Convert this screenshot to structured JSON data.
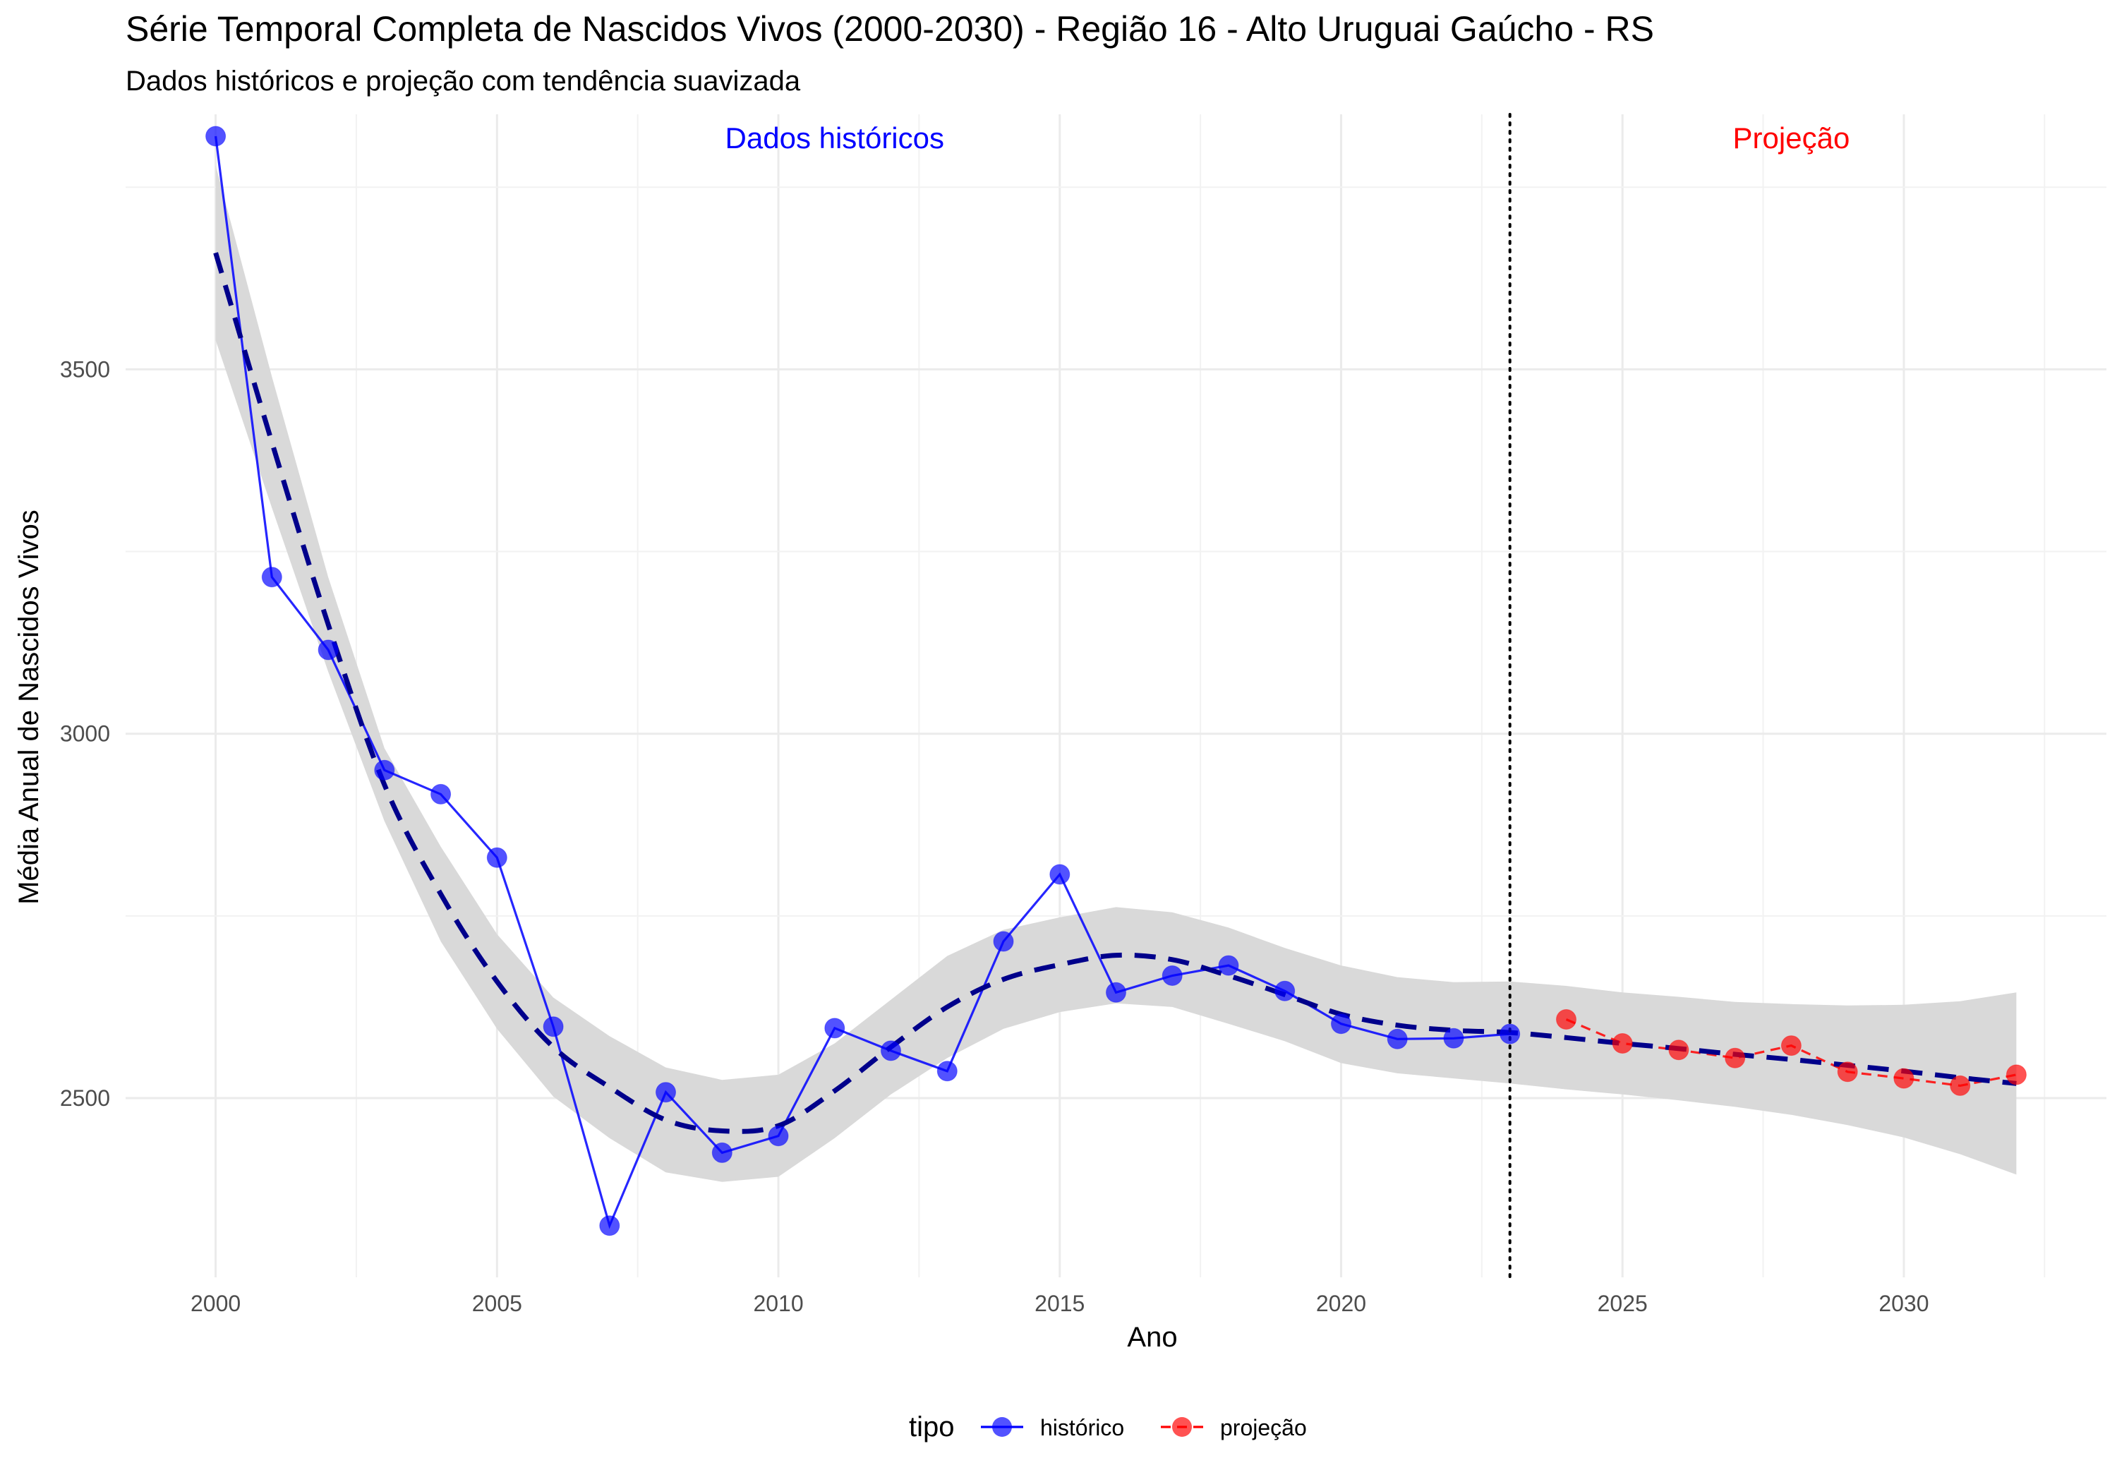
{
  "chart_data": {
    "type": "line",
    "title": "Série Temporal Completa de Nascidos Vivos (2000-2030) -  Região 16 - Alto Uruguai Gaúcho - RS",
    "subtitle": "Dados históricos e projeção com tendência suavizada",
    "xlabel": "Ano",
    "ylabel": "Média Anual de Nascidos Vivos",
    "xlim": [
      1998.4,
      2033.6
    ],
    "ylim": [
      2254,
      3850
    ],
    "x_ticks": [
      2000,
      2005,
      2010,
      2015,
      2020,
      2025,
      2030
    ],
    "y_ticks": [
      2500,
      3000,
      3500
    ],
    "grid": true,
    "legend": {
      "title": "tipo",
      "position": "bottom",
      "entries": [
        "histórico",
        "projeção"
      ]
    },
    "series": [
      {
        "name": "histórico",
        "color": "#0000ff",
        "line_style": "solid",
        "x": [
          2000,
          2001,
          2002,
          2003,
          2004,
          2005,
          2006,
          2007,
          2008,
          2009,
          2010,
          2011,
          2012,
          2013,
          2014,
          2015,
          2016,
          2017,
          2018,
          2019,
          2020,
          2021,
          2022,
          2023
        ],
        "y": [
          3820,
          3215,
          3115,
          2950,
          2917,
          2830,
          2598,
          2325,
          2508,
          2425,
          2448,
          2596,
          2565,
          2537,
          2715,
          2807,
          2645,
          2668,
          2682,
          2647,
          2602,
          2581,
          2582,
          2588
        ]
      },
      {
        "name": "projeção",
        "color": "#ff0000",
        "line_style": "dashed",
        "x": [
          2024,
          2025,
          2026,
          2027,
          2028,
          2029,
          2030,
          2031,
          2032
        ],
        "y": [
          2608,
          2575,
          2566,
          2555,
          2572,
          2536,
          2527,
          2517,
          2532
        ]
      }
    ],
    "trend": {
      "color": "#00008b",
      "line_style": "dashed",
      "band_color": "#d9d9d9",
      "x": [
        2000,
        2001,
        2002,
        2003,
        2004,
        2005,
        2006,
        2007,
        2008,
        2009,
        2010,
        2011,
        2012,
        2013,
        2014,
        2015,
        2016,
        2017,
        2018,
        2019,
        2020,
        2021,
        2022,
        2023,
        2024,
        2025,
        2026,
        2027,
        2028,
        2029,
        2030,
        2031,
        2032
      ],
      "y": [
        3660,
        3400,
        3150,
        2930,
        2780,
        2660,
        2570,
        2515,
        2470,
        2455,
        2462,
        2510,
        2570,
        2625,
        2663,
        2683,
        2696,
        2690,
        2668,
        2642,
        2615,
        2600,
        2593,
        2590,
        2583,
        2575,
        2568,
        2560,
        2553,
        2545,
        2537,
        2528,
        2520
      ],
      "lower": [
        3540,
        3310,
        3085,
        2880,
        2715,
        2595,
        2502,
        2445,
        2398,
        2385,
        2392,
        2445,
        2505,
        2555,
        2595,
        2618,
        2630,
        2625,
        2602,
        2578,
        2548,
        2534,
        2527,
        2520,
        2512,
        2505,
        2497,
        2488,
        2477,
        2463,
        2446,
        2423,
        2395
      ],
      "upper": [
        3780,
        3490,
        3215,
        2980,
        2845,
        2725,
        2638,
        2585,
        2542,
        2525,
        2532,
        2575,
        2635,
        2695,
        2731,
        2748,
        2762,
        2755,
        2734,
        2706,
        2682,
        2666,
        2659,
        2660,
        2654,
        2645,
        2639,
        2632,
        2629,
        2627,
        2628,
        2633,
        2645
      ]
    },
    "separator": {
      "x": 2023,
      "style": "dotted",
      "color": "#000000"
    },
    "annotations": [
      {
        "text": "Dados históricos",
        "x": 2011,
        "y": 3817,
        "color": "#0000ff"
      },
      {
        "text": "Projeção",
        "x": 2028,
        "y": 3817,
        "color": "#ff0000"
      }
    ]
  }
}
